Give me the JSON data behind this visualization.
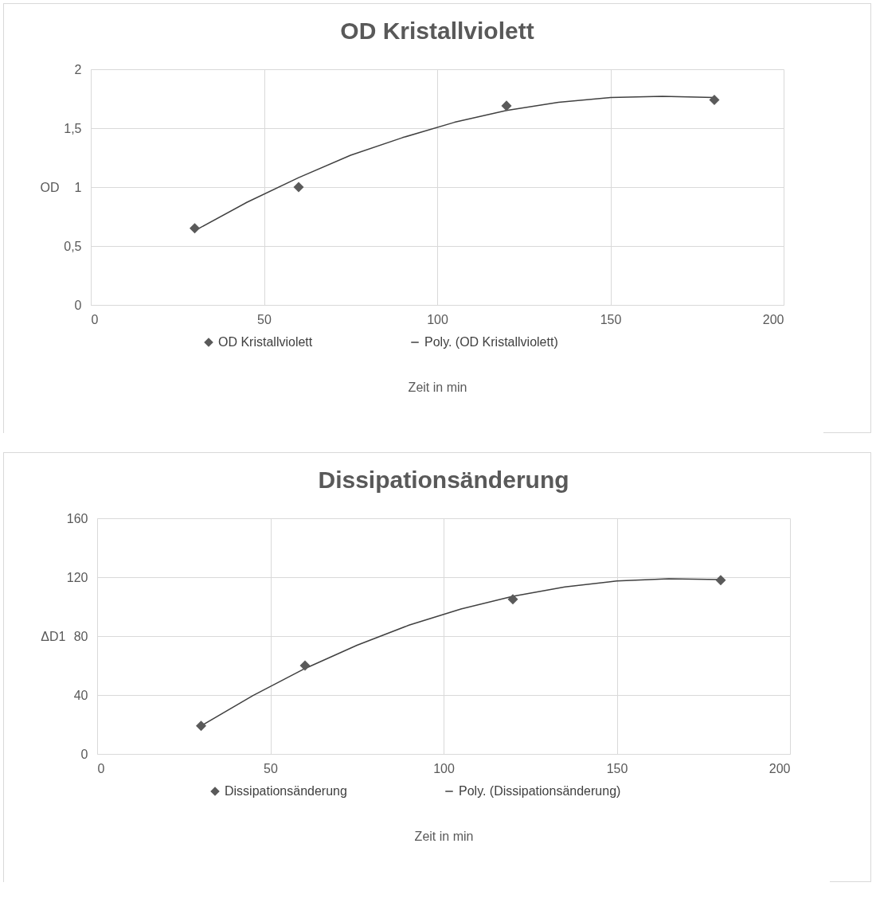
{
  "chart_data": [
    {
      "type": "scatter",
      "title": "OD Kristallviolett",
      "xlabel": "Zeit in min",
      "ylabel": "OD",
      "xlim": [
        0,
        200
      ],
      "xticks": [
        0,
        50,
        100,
        150,
        200
      ],
      "ylim": [
        0,
        2
      ],
      "yticks": [
        0,
        {
          "value": 0.5,
          "label": "0,5"
        },
        1,
        {
          "value": 1.5,
          "label": "1,5"
        },
        2
      ],
      "grid": true,
      "legend": "bottom",
      "series": [
        {
          "name": "OD Kristallviolett",
          "marker": "diamond",
          "color": "#5a5a5a",
          "x": [
            30,
            60,
            120,
            180
          ],
          "values": [
            0.65,
            1.0,
            1.69,
            1.74
          ]
        },
        {
          "name": "Poly. (OD Kristallviolett)",
          "type": "line",
          "color": "#404040",
          "x": [
            30,
            45,
            60,
            75,
            90,
            105,
            120,
            135,
            150,
            165,
            180
          ],
          "values": [
            0.63,
            0.87,
            1.08,
            1.27,
            1.42,
            1.55,
            1.65,
            1.72,
            1.76,
            1.77,
            1.76
          ]
        }
      ]
    },
    {
      "type": "scatter",
      "title": "Dissipationsänderung",
      "xlabel": "Zeit in min",
      "ylabel": "ΔD1",
      "xlim": [
        0,
        200
      ],
      "xticks": [
        0,
        50,
        100,
        150,
        200
      ],
      "ylim": [
        0,
        160
      ],
      "yticks": [
        0,
        40,
        80,
        120,
        160
      ],
      "grid": true,
      "legend": "bottom",
      "series": [
        {
          "name": "Dissipationsänderung",
          "marker": "diamond",
          "color": "#5a5a5a",
          "x": [
            30,
            60,
            120,
            180
          ],
          "values": [
            19,
            60,
            105,
            118
          ]
        },
        {
          "name": "Poly. (Dissipationsänderung)",
          "type": "line",
          "color": "#404040",
          "x": [
            30,
            45,
            60,
            75,
            90,
            105,
            120,
            135,
            150,
            165,
            180
          ],
          "values": [
            19,
            39.7,
            58,
            73.8,
            87.4,
            98.4,
            107,
            113.4,
            117.4,
            118.9,
            118.4
          ]
        }
      ]
    }
  ]
}
